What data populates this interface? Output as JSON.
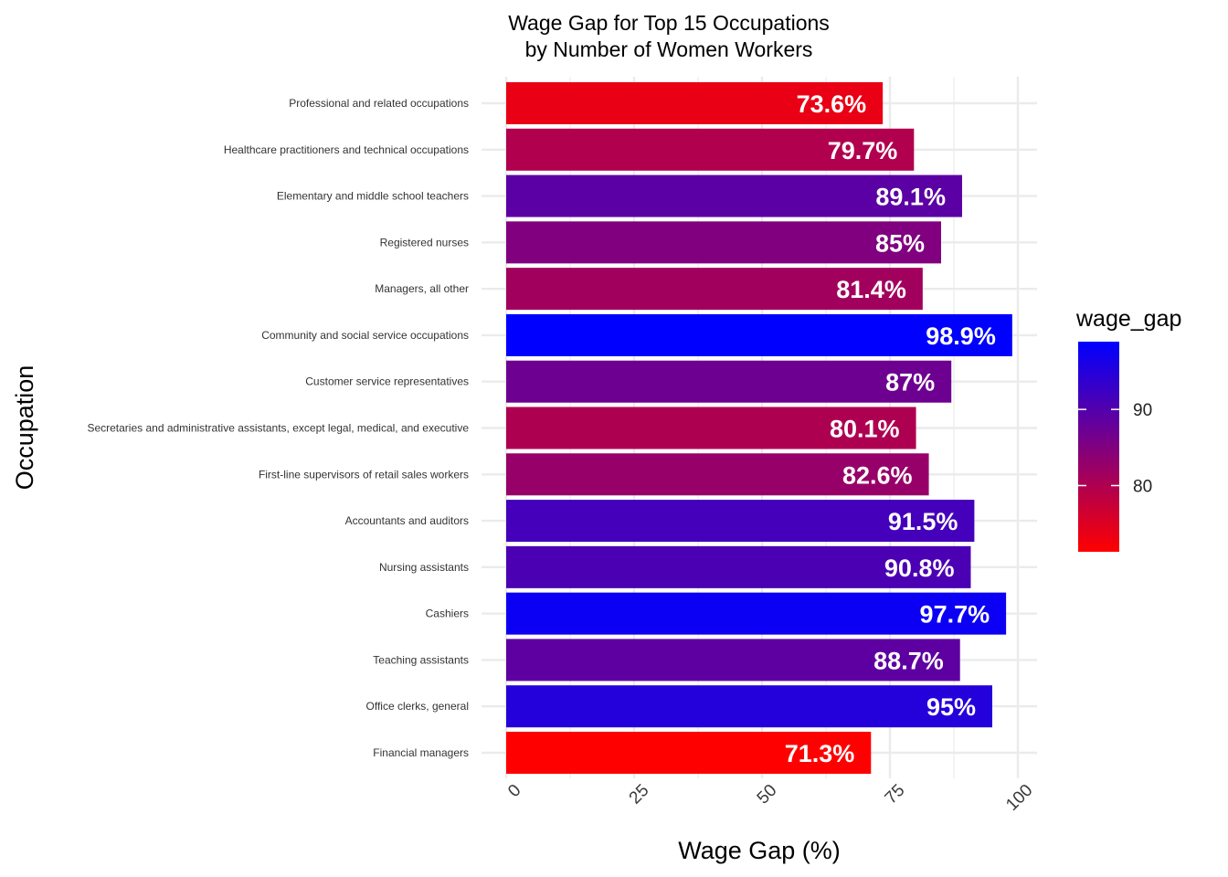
{
  "chart_data": {
    "type": "bar",
    "orientation": "horizontal",
    "title": "Wage Gap for Top 15 Occupations\n by Number of Women Workers",
    "xlabel": "Wage Gap (%)",
    "ylabel": "Occupation",
    "xlim": [
      0,
      100
    ],
    "xticks": [
      0,
      25,
      50,
      75,
      100
    ],
    "grid": true,
    "categories": [
      "Professional and related occupations",
      "Healthcare practitioners and technical occupations",
      "Elementary and middle school teachers",
      "Registered nurses",
      "Managers, all other",
      "Community and social service occupations",
      "Customer service representatives",
      "Secretaries and administrative assistants, except legal, medical, and executive",
      "First-line supervisors of retail sales workers",
      "Accountants and auditors",
      "Nursing assistants",
      "Cashiers",
      "Teaching assistants",
      "Office clerks, general",
      "Financial managers"
    ],
    "values": [
      73.6,
      79.7,
      89.1,
      85,
      81.4,
      98.9,
      87,
      80.1,
      82.6,
      91.5,
      90.8,
      97.7,
      88.7,
      95,
      71.3
    ],
    "data_labels": [
      "73.6%",
      "79.7%",
      "89.1%",
      "85%",
      "81.4%",
      "98.9%",
      "87%",
      "80.1%",
      "82.6%",
      "91.5%",
      "90.8%",
      "97.7%",
      "88.7%",
      "95%",
      "71.3%"
    ],
    "legend": {
      "title": "wage_gap",
      "position": "right",
      "type": "gradient",
      "low_color": "#ff0000",
      "high_color": "#0000ff",
      "range": [
        71.3,
        98.9
      ],
      "ticks": [
        80,
        90
      ]
    }
  }
}
